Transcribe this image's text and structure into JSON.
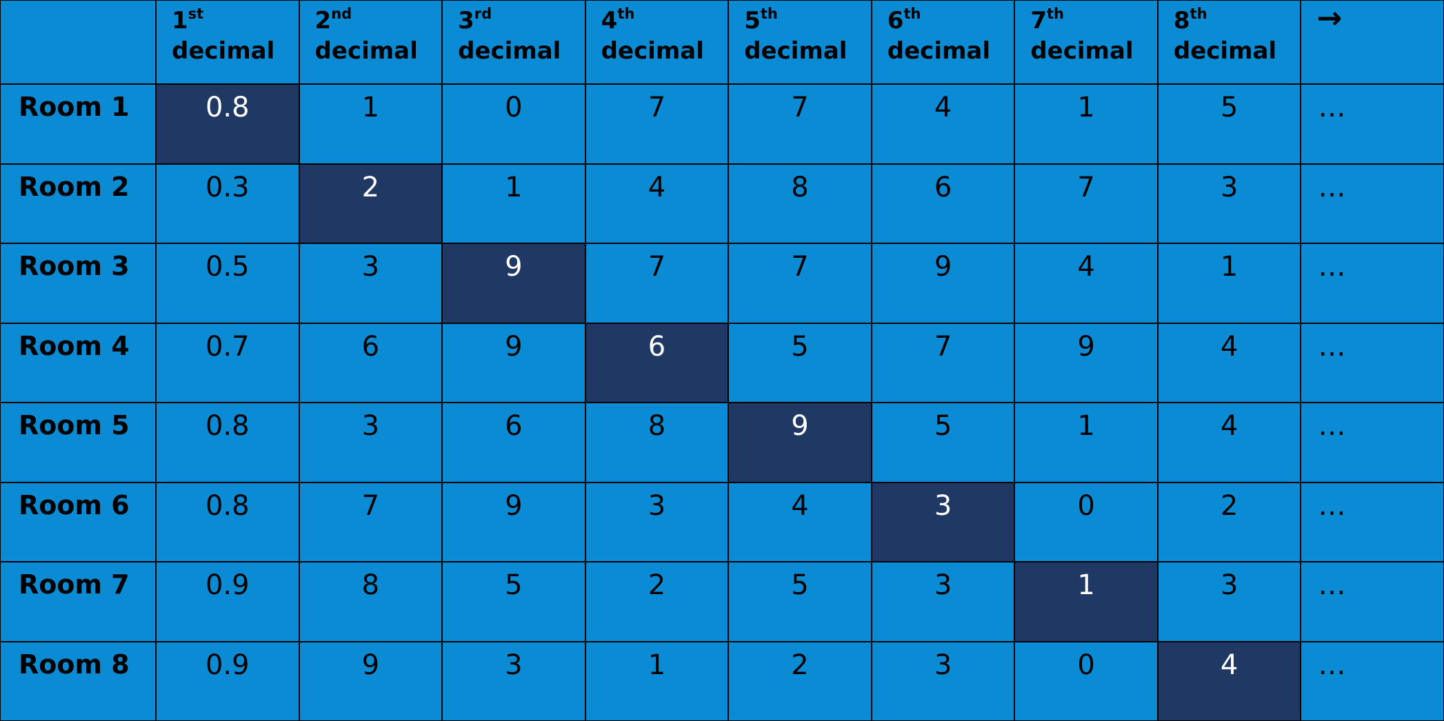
{
  "table": {
    "header": [
      {
        "number": "1",
        "suffix": "st",
        "word": "decimal"
      },
      {
        "number": "2",
        "suffix": "nd",
        "word": "decimal"
      },
      {
        "number": "3",
        "suffix": "rd",
        "word": "decimal"
      },
      {
        "number": "4",
        "suffix": "th",
        "word": "decimal"
      },
      {
        "number": "5",
        "suffix": "th",
        "word": "decimal"
      },
      {
        "number": "6",
        "suffix": "th",
        "word": "decimal"
      },
      {
        "number": "7",
        "suffix": "th",
        "word": "decimal"
      },
      {
        "number": "8",
        "suffix": "th",
        "word": "decimal"
      },
      {
        "arrow": "→"
      }
    ],
    "rows": [
      {
        "label": "Room 1",
        "highlight": 0,
        "cells": [
          "0.8",
          "1",
          "0",
          "7",
          "7",
          "4",
          "1",
          "5",
          "…"
        ]
      },
      {
        "label": "Room 2",
        "highlight": 1,
        "cells": [
          "0.3",
          "2",
          "1",
          "4",
          "8",
          "6",
          "7",
          "3",
          "…"
        ]
      },
      {
        "label": "Room 3",
        "highlight": 2,
        "cells": [
          "0.5",
          "3",
          "9",
          "7",
          "7",
          "9",
          "4",
          "1",
          "…"
        ]
      },
      {
        "label": "Room 4",
        "highlight": 3,
        "cells": [
          "0.7",
          "6",
          "9",
          "6",
          "5",
          "7",
          "9",
          "4",
          "…"
        ]
      },
      {
        "label": "Room 5",
        "highlight": 4,
        "cells": [
          "0.8",
          "3",
          "6",
          "8",
          "9",
          "5",
          "1",
          "4",
          "…"
        ]
      },
      {
        "label": "Room 6",
        "highlight": 5,
        "cells": [
          "0.8",
          "7",
          "9",
          "3",
          "4",
          "3",
          "0",
          "2",
          "…"
        ]
      },
      {
        "label": "Room 7",
        "highlight": 6,
        "cells": [
          "0.9",
          "8",
          "5",
          "2",
          "5",
          "3",
          "1",
          "3",
          "…"
        ]
      },
      {
        "label": "Room 8",
        "highlight": 7,
        "cells": [
          "0.9",
          "9",
          "3",
          "1",
          "2",
          "3",
          "0",
          "4",
          "…"
        ]
      }
    ]
  }
}
